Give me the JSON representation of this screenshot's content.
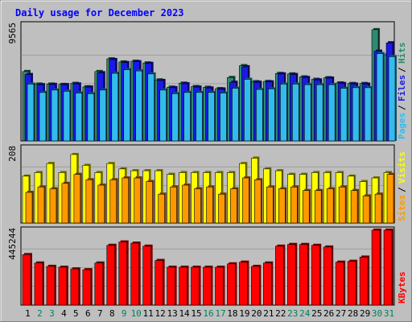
{
  "chart_data": {
    "type": "bar",
    "title": "Daily usage for December 2023",
    "categories": [
      "1",
      "2",
      "3",
      "4",
      "5",
      "6",
      "7",
      "8",
      "9",
      "10",
      "11",
      "12",
      "13",
      "14",
      "15",
      "16",
      "17",
      "18",
      "19",
      "20",
      "21",
      "22",
      "23",
      "24",
      "25",
      "26",
      "27",
      "28",
      "29",
      "30",
      "31"
    ],
    "weekend_days": [
      "2",
      "3",
      "9",
      "10",
      "16",
      "17",
      "23",
      "24",
      "30",
      "31"
    ],
    "panels": [
      {
        "id": "hits-files-pages",
        "axis_max_label": "9565",
        "ylim": [
          0,
          9565
        ],
        "legend": [
          "Pages",
          "Files",
          "Hits"
        ],
        "series": [
          {
            "name": "Hits",
            "color": "#2e8b70",
            "values": [
              5800,
              4750,
              4750,
              4720,
              4810,
              4520,
              5800,
              6860,
              6600,
              6660,
              6520,
              5100,
              4490,
              4830,
              4540,
              4480,
              4370,
              5300,
              6290,
              4950,
              4970,
              5640,
              5600,
              5350,
              5150,
              5280,
              4850,
              4800,
              4800,
              9300,
              7200
            ]
          },
          {
            "name": "Files",
            "color": "#1a1ae6",
            "values": [
              5550,
              4700,
              4720,
              4700,
              4760,
              4500,
              5700,
              6800,
              6550,
              6620,
              6480,
              5050,
              4450,
              4780,
              4500,
              4420,
              4340,
              4900,
              6200,
              4900,
              4930,
              5600,
              5550,
              5300,
              5100,
              5250,
              4800,
              4750,
              4750,
              7500,
              8200
            ]
          },
          {
            "name": "Pages",
            "color": "#33bbee",
            "values": [
              4750,
              4050,
              4250,
              4150,
              4000,
              3950,
              4250,
              5650,
              5950,
              5850,
              5600,
              4250,
              3950,
              4050,
              4050,
              4050,
              4000,
              4400,
              5150,
              4300,
              4350,
              4750,
              4750,
              4700,
              4700,
              4700,
              4400,
              4450,
              4450,
              7300,
              7050
            ]
          }
        ]
      },
      {
        "id": "visits-sites",
        "axis_max_label": "208",
        "ylim": [
          0,
          208
        ],
        "legend": [
          "Sites",
          "Visits"
        ],
        "series": [
          {
            "name": "Visits",
            "color": "#ffff00",
            "values": [
              130,
              140,
              165,
              140,
              190,
              160,
              140,
              165,
              150,
              145,
              145,
              145,
              135,
              140,
              140,
              140,
              140,
              140,
              165,
              180,
              150,
              145,
              135,
              135,
              140,
              140,
              140,
              130,
              115,
              125,
              140
            ]
          },
          {
            "name": "Sites",
            "color": "#ff9900",
            "values": [
              85,
              100,
              95,
              110,
              135,
              120,
              105,
              120,
              125,
              125,
              115,
              80,
              100,
              105,
              95,
              100,
              80,
              95,
              125,
              120,
              100,
              95,
              100,
              90,
              90,
              95,
              100,
              90,
              75,
              80,
              135
            ]
          }
        ]
      },
      {
        "id": "kbytes",
        "axis_max_label": "445244",
        "ylim": [
          0,
          445244
        ],
        "legend": [
          "KBytes"
        ],
        "series": [
          {
            "name": "KBytes",
            "color": "#ff0000",
            "values": [
              300000,
              250000,
              230000,
              225000,
              215000,
              210000,
              250000,
              355000,
              375000,
              368000,
              350000,
              265000,
              225000,
              225000,
              225000,
              225000,
              225000,
              245000,
              255000,
              230000,
              250000,
              350000,
              360000,
              360000,
              355000,
              345000,
              255000,
              260000,
              285000,
              445244,
              445244
            ]
          }
        ]
      }
    ],
    "colors": {
      "background": "#bfbfbf",
      "title": "#0000ff",
      "weekday_label": "#000000",
      "weekend_label": "#00805a"
    }
  }
}
